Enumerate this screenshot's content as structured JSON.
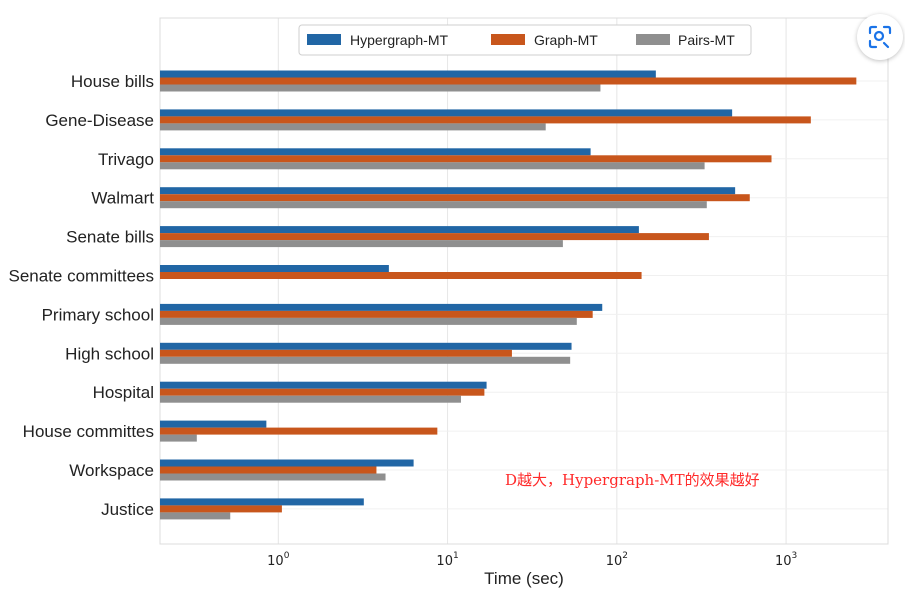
{
  "chart_data": {
    "type": "bar",
    "orientation": "horizontal",
    "x_scale": "log",
    "xlim": [
      0.2,
      4000
    ],
    "grid": true,
    "legend_position": "top",
    "xlabel": "Time (sec)",
    "xticks": [
      1,
      10,
      100,
      1000
    ],
    "xtick_labels": [
      {
        "base": "10",
        "exp": "0"
      },
      {
        "base": "10",
        "exp": "1"
      },
      {
        "base": "10",
        "exp": "2"
      },
      {
        "base": "10",
        "exp": "3"
      }
    ],
    "categories": [
      "House bills",
      "Gene-Disease",
      "Trivago",
      "Walmart",
      "Senate bills",
      "Senate committees",
      "Primary school",
      "High school",
      "Hospital",
      "House committes",
      "Workspace",
      "Justice"
    ],
    "series": [
      {
        "name": "Hypergraph-MT",
        "color": "#2166a5",
        "values": [
          170,
          480,
          70,
          500,
          135,
          4.5,
          82,
          54,
          17,
          0.85,
          6.3,
          3.2
        ]
      },
      {
        "name": "Graph-MT",
        "color": "#c8561c",
        "values": [
          2600,
          1400,
          820,
          610,
          350,
          140,
          72,
          24,
          16.5,
          8.7,
          3.8,
          1.05
        ]
      },
      {
        "name": "Pairs-MT",
        "color": "#8f8f8f",
        "values": [
          80,
          38,
          330,
          340,
          48,
          null,
          58,
          53,
          12,
          0.33,
          4.3,
          0.52
        ]
      }
    ],
    "annotation": "D越大，Hypergraph-MT的效果越好"
  },
  "ui": {
    "lens_icon": "lens-scan-icon"
  }
}
